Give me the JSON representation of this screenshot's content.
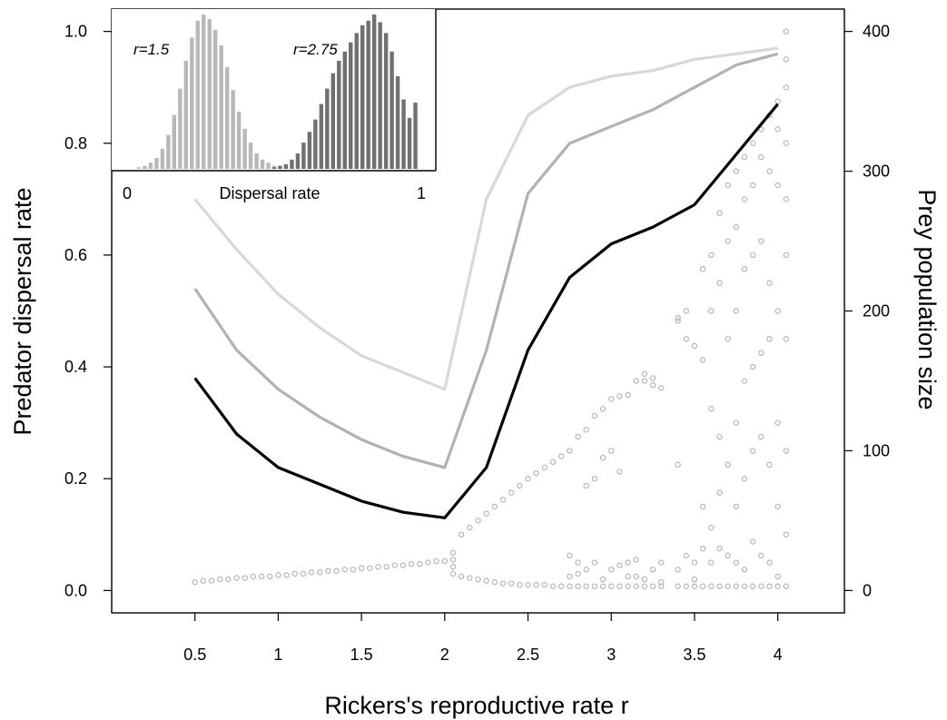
{
  "chart_data": [
    {
      "type": "line",
      "xlabel": "Rickers's reproductive rate r",
      "ylabel": "Predator dispersal rate",
      "y2label": "Prey population size",
      "xlim": [
        0.0,
        4.4
      ],
      "ylim": [
        -0.04,
        1.04
      ],
      "y2lim": [
        -16,
        416
      ],
      "x_ticks": [
        0.5,
        1,
        1.5,
        2,
        2.5,
        3,
        3.5,
        4
      ],
      "x_tick_labels": [
        "0.5",
        "1",
        "1.5",
        "2",
        "2.5",
        "3",
        "3.5",
        "4"
      ],
      "y_ticks": [
        0.0,
        0.2,
        0.4,
        0.6,
        0.8,
        1.0
      ],
      "y_tick_labels": [
        "0.0",
        "0.2",
        "0.4",
        "0.6",
        "0.8",
        "1.0"
      ],
      "y2_ticks": [
        0,
        100,
        200,
        300,
        400
      ],
      "y2_tick_labels": [
        "0",
        "100",
        "200",
        "300",
        "400"
      ],
      "grid": false,
      "x": [
        0.5,
        0.75,
        1.0,
        1.25,
        1.5,
        1.75,
        2.0,
        2.25,
        2.5,
        2.75,
        3.0,
        3.25,
        3.5,
        3.75,
        4.0
      ],
      "series": [
        {
          "color": "#d8d8d8",
          "values": [
            0.7,
            0.61,
            0.53,
            0.47,
            0.42,
            0.39,
            0.36,
            0.7,
            0.85,
            0.9,
            0.92,
            0.93,
            0.95,
            0.96,
            0.97
          ]
        },
        {
          "color": "#b2b2b2",
          "values": [
            0.54,
            0.43,
            0.36,
            0.31,
            0.27,
            0.24,
            0.22,
            0.43,
            0.71,
            0.8,
            0.83,
            0.86,
            0.9,
            0.94,
            0.96
          ]
        },
        {
          "color": "#000000",
          "values": [
            0.38,
            0.28,
            0.22,
            0.19,
            0.16,
            0.14,
            0.13,
            0.22,
            0.43,
            0.56,
            0.62,
            0.65,
            0.69,
            0.78,
            0.87
          ]
        }
      ],
      "scatter": {
        "axis": "right",
        "color": "#b5b5b5",
        "description": "prey population size bifurcation points",
        "groups": [
          {
            "x": 0.5,
            "values": [
              6
            ]
          },
          {
            "x": 0.55,
            "values": [
              7
            ]
          },
          {
            "x": 0.6,
            "values": [
              7
            ]
          },
          {
            "x": 0.65,
            "values": [
              8
            ]
          },
          {
            "x": 0.7,
            "values": [
              8
            ]
          },
          {
            "x": 0.75,
            "values": [
              9
            ]
          },
          {
            "x": 0.8,
            "values": [
              9
            ]
          },
          {
            "x": 0.85,
            "values": [
              10
            ]
          },
          {
            "x": 0.9,
            "values": [
              10
            ]
          },
          {
            "x": 0.95,
            "values": [
              10
            ]
          },
          {
            "x": 1.0,
            "values": [
              11
            ]
          },
          {
            "x": 1.05,
            "values": [
              11
            ]
          },
          {
            "x": 1.1,
            "values": [
              12
            ]
          },
          {
            "x": 1.15,
            "values": [
              12
            ]
          },
          {
            "x": 1.2,
            "values": [
              13
            ]
          },
          {
            "x": 1.25,
            "values": [
              13
            ]
          },
          {
            "x": 1.3,
            "values": [
              14
            ]
          },
          {
            "x": 1.35,
            "values": [
              14
            ]
          },
          {
            "x": 1.4,
            "values": [
              15
            ]
          },
          {
            "x": 1.45,
            "values": [
              15
            ]
          },
          {
            "x": 1.5,
            "values": [
              16
            ]
          },
          {
            "x": 1.55,
            "values": [
              16
            ]
          },
          {
            "x": 1.6,
            "values": [
              17
            ]
          },
          {
            "x": 1.65,
            "values": [
              17
            ]
          },
          {
            "x": 1.7,
            "values": [
              18
            ]
          },
          {
            "x": 1.75,
            "values": [
              18
            ]
          },
          {
            "x": 1.8,
            "values": [
              19
            ]
          },
          {
            "x": 1.85,
            "values": [
              19
            ]
          },
          {
            "x": 1.9,
            "values": [
              20
            ]
          },
          {
            "x": 1.95,
            "values": [
              21
            ]
          },
          {
            "x": 2.0,
            "values": [
              21
            ]
          },
          {
            "x": 2.05,
            "values": [
              27,
              22,
              17,
              12
            ]
          },
          {
            "x": 2.1,
            "values": [
              40,
              10
            ]
          },
          {
            "x": 2.15,
            "values": [
              45,
              9
            ]
          },
          {
            "x": 2.2,
            "values": [
              50,
              8
            ]
          },
          {
            "x": 2.25,
            "values": [
              55,
              7
            ]
          },
          {
            "x": 2.3,
            "values": [
              60,
              6
            ]
          },
          {
            "x": 2.35,
            "values": [
              65,
              5
            ]
          },
          {
            "x": 2.4,
            "values": [
              70,
              5
            ]
          },
          {
            "x": 2.45,
            "values": [
              75,
              4
            ]
          },
          {
            "x": 2.5,
            "values": [
              80,
              4
            ]
          },
          {
            "x": 2.55,
            "values": [
              84,
              4
            ]
          },
          {
            "x": 2.6,
            "values": [
              88,
              4
            ]
          },
          {
            "x": 2.65,
            "values": [
              92,
              3
            ]
          },
          {
            "x": 2.7,
            "values": [
              96,
              3
            ]
          },
          {
            "x": 2.75,
            "values": [
              100,
              3,
              25,
              10
            ]
          },
          {
            "x": 2.8,
            "values": [
              110,
              3,
              20,
              12
            ]
          },
          {
            "x": 2.85,
            "values": [
              115,
              75,
              3,
              15
            ]
          },
          {
            "x": 2.9,
            "values": [
              125,
              80,
              3,
              20
            ]
          },
          {
            "x": 2.95,
            "values": [
              130,
              95,
              3,
              8
            ]
          },
          {
            "x": 3.0,
            "values": [
              137,
              100,
              3,
              15
            ]
          },
          {
            "x": 3.05,
            "values": [
              139,
              85,
              3,
              18
            ]
          },
          {
            "x": 3.1,
            "values": [
              140,
              3,
              10,
              20
            ]
          },
          {
            "x": 3.15,
            "values": [
              150,
              3,
              10,
              22
            ]
          },
          {
            "x": 3.2,
            "values": [
              155,
              150,
              3,
              8
            ]
          },
          {
            "x": 3.25,
            "values": [
              152,
              147,
              3,
              15
            ]
          },
          {
            "x": 3.3,
            "values": [
              145,
              3,
              6,
              20
            ]
          },
          {
            "x": 3.4,
            "values": [
              195,
              193,
              90,
              3,
              15
            ]
          },
          {
            "x": 3.45,
            "values": [
              200,
              180,
              3,
              25
            ]
          },
          {
            "x": 3.5,
            "values": [
              175,
              3,
              8,
              20
            ]
          },
          {
            "x": 3.55,
            "values": [
              230,
              165,
              60,
              3,
              30
            ]
          },
          {
            "x": 3.6,
            "values": [
              240,
              200,
              130,
              45,
              3,
              20
            ]
          },
          {
            "x": 3.65,
            "values": [
              270,
              220,
              110,
              70,
              3,
              30
            ]
          },
          {
            "x": 3.7,
            "values": [
              290,
              250,
              180,
              90,
              3,
              25
            ]
          },
          {
            "x": 3.75,
            "values": [
              300,
              260,
              200,
              120,
              60,
              3,
              20
            ]
          },
          {
            "x": 3.8,
            "values": [
              310,
              280,
              230,
              150,
              80,
              3,
              15
            ]
          },
          {
            "x": 3.85,
            "values": [
              320,
              290,
              240,
              160,
              100,
              3,
              35
            ]
          },
          {
            "x": 3.9,
            "values": [
              330,
              310,
              250,
              170,
              110,
              3,
              25
            ]
          },
          {
            "x": 3.95,
            "values": [
              340,
              300,
              220,
              180,
              90,
              3,
              20
            ]
          },
          {
            "x": 4.0,
            "values": [
              350,
              330,
              290,
              200,
              120,
              60,
              3,
              10
            ]
          },
          {
            "x": 4.05,
            "values": [
              400,
              380,
              360,
              320,
              280,
              240,
              180,
              100,
              40,
              3
            ]
          }
        ]
      }
    },
    {
      "type": "bar",
      "role": "inset",
      "xlabel": "Dispersal rate",
      "xlim": [
        0,
        1
      ],
      "x_tick_labels": [
        "0",
        "1"
      ],
      "grid": false,
      "annotations": [
        "r=1.5",
        "r=2.75"
      ],
      "series": [
        {
          "label": "r=1.5",
          "color": "#b8b8b8",
          "x": [
            0.04,
            0.06,
            0.08,
            0.1,
            0.12,
            0.14,
            0.16,
            0.18,
            0.2,
            0.22,
            0.24,
            0.26,
            0.28,
            0.3,
            0.32,
            0.34,
            0.36,
            0.38,
            0.4,
            0.42,
            0.44,
            0.46,
            0.48,
            0.5,
            0.52,
            0.54
          ],
          "values": [
            0.01,
            0.02,
            0.04,
            0.07,
            0.13,
            0.22,
            0.35,
            0.52,
            0.7,
            0.85,
            0.96,
            1.0,
            0.97,
            0.9,
            0.8,
            0.66,
            0.51,
            0.37,
            0.26,
            0.17,
            0.1,
            0.06,
            0.04,
            0.02,
            0.01,
            0.01
          ]
        },
        {
          "label": "r=2.75",
          "color": "#707070",
          "x": [
            0.5,
            0.52,
            0.54,
            0.56,
            0.58,
            0.6,
            0.62,
            0.64,
            0.66,
            0.68,
            0.7,
            0.72,
            0.74,
            0.76,
            0.78,
            0.8,
            0.82,
            0.84,
            0.86,
            0.88,
            0.9,
            0.92,
            0.94,
            0.96,
            0.98
          ],
          "values": [
            0.01,
            0.02,
            0.03,
            0.06,
            0.1,
            0.17,
            0.24,
            0.32,
            0.42,
            0.52,
            0.62,
            0.7,
            0.76,
            0.82,
            0.88,
            0.93,
            0.96,
            1.0,
            0.95,
            0.88,
            0.76,
            0.6,
            0.45,
            0.33,
            0.43
          ]
        }
      ]
    }
  ]
}
